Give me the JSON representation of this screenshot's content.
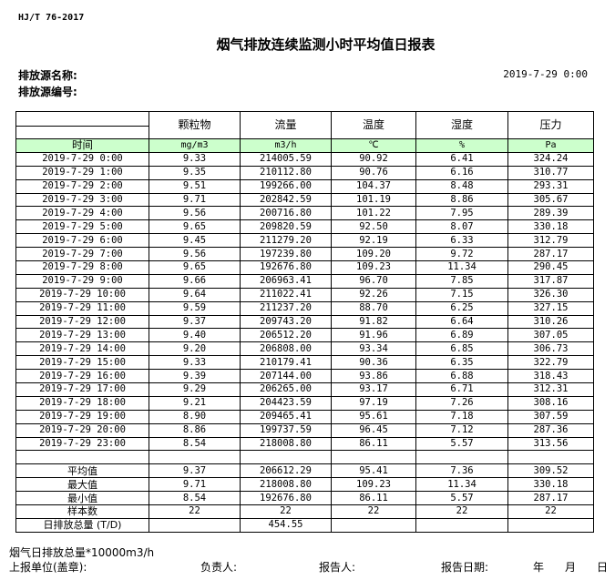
{
  "header": {
    "standard": "HJ/T  76-2017",
    "title": "烟气排放连续监测小时平均值日报表",
    "source_name_label": "排放源名称:",
    "source_id_label": "排放源编号:",
    "report_time": "2019-7-29 0:00"
  },
  "table": {
    "columns": [
      "颗粒物",
      "流量",
      "温度",
      "湿度",
      "压力"
    ],
    "time_label": "时间",
    "units": [
      "mg/m3",
      "m3/h",
      "℃",
      "%",
      "Pa"
    ],
    "rows": [
      [
        "2019-7-29 0:00",
        "9.33",
        "214005.59",
        "90.92",
        "6.41",
        "324.24"
      ],
      [
        "2019-7-29 1:00",
        "9.35",
        "210112.80",
        "90.76",
        "6.16",
        "310.77"
      ],
      [
        "2019-7-29 2:00",
        "9.51",
        "199266.00",
        "104.37",
        "8.48",
        "293.31"
      ],
      [
        "2019-7-29 3:00",
        "9.71",
        "202842.59",
        "101.19",
        "8.86",
        "305.67"
      ],
      [
        "2019-7-29 4:00",
        "9.56",
        "200716.80",
        "101.22",
        "7.95",
        "289.39"
      ],
      [
        "2019-7-29 5:00",
        "9.65",
        "209820.59",
        "92.50",
        "8.07",
        "330.18"
      ],
      [
        "2019-7-29 6:00",
        "9.45",
        "211279.20",
        "92.19",
        "6.33",
        "312.79"
      ],
      [
        "2019-7-29 7:00",
        "9.56",
        "197239.80",
        "109.20",
        "9.72",
        "287.17"
      ],
      [
        "2019-7-29 8:00",
        "9.65",
        "192676.80",
        "109.23",
        "11.34",
        "290.45"
      ],
      [
        "2019-7-29 9:00",
        "9.66",
        "206963.41",
        "96.70",
        "7.85",
        "317.87"
      ],
      [
        "2019-7-29 10:00",
        "9.64",
        "211022.41",
        "92.26",
        "7.15",
        "326.30"
      ],
      [
        "2019-7-29 11:00",
        "9.59",
        "211237.20",
        "88.70",
        "6.25",
        "327.15"
      ],
      [
        "2019-7-29 12:00",
        "9.37",
        "209743.20",
        "91.82",
        "6.64",
        "310.26"
      ],
      [
        "2019-7-29 13:00",
        "9.40",
        "206512.20",
        "91.96",
        "6.89",
        "307.05"
      ],
      [
        "2019-7-29 14:00",
        "9.20",
        "206808.00",
        "93.34",
        "6.85",
        "306.73"
      ],
      [
        "2019-7-29 15:00",
        "9.33",
        "210179.41",
        "90.36",
        "6.35",
        "322.79"
      ],
      [
        "2019-7-29 16:00",
        "9.39",
        "207144.00",
        "93.86",
        "6.88",
        "318.43"
      ],
      [
        "2019-7-29 17:00",
        "9.29",
        "206265.00",
        "93.17",
        "6.71",
        "312.31"
      ],
      [
        "2019-7-29 18:00",
        "9.21",
        "204423.59",
        "97.19",
        "7.26",
        "308.16"
      ],
      [
        "2019-7-29 19:00",
        "8.90",
        "209465.41",
        "95.61",
        "7.18",
        "307.59"
      ],
      [
        "2019-7-29 20:00",
        "8.86",
        "199737.59",
        "96.45",
        "7.12",
        "287.36"
      ],
      [
        "2019-7-29 23:00",
        "8.54",
        "218008.80",
        "86.11",
        "5.57",
        "313.56"
      ]
    ],
    "summary": [
      [
        "平均值",
        "9.37",
        "206612.29",
        "95.41",
        "7.36",
        "309.52"
      ],
      [
        "最大值",
        "9.71",
        "218008.80",
        "109.23",
        "11.34",
        "330.18"
      ],
      [
        "最小值",
        "8.54",
        "192676.80",
        "86.11",
        "5.57",
        "287.17"
      ],
      [
        "样本数",
        "22",
        "22",
        "22",
        "22",
        "22"
      ],
      [
        "日排放总量 (T/D)",
        "",
        "454.55",
        "",
        "",
        ""
      ]
    ]
  },
  "footer": {
    "note": "烟气日排放总量*10000m3/h",
    "unit_label": "上报单位(盖章):",
    "responsible_label": "负责人:",
    "reporter_label": "报告人:",
    "date_label": "报告日期:",
    "year": "年",
    "month": "月",
    "day": "日"
  }
}
